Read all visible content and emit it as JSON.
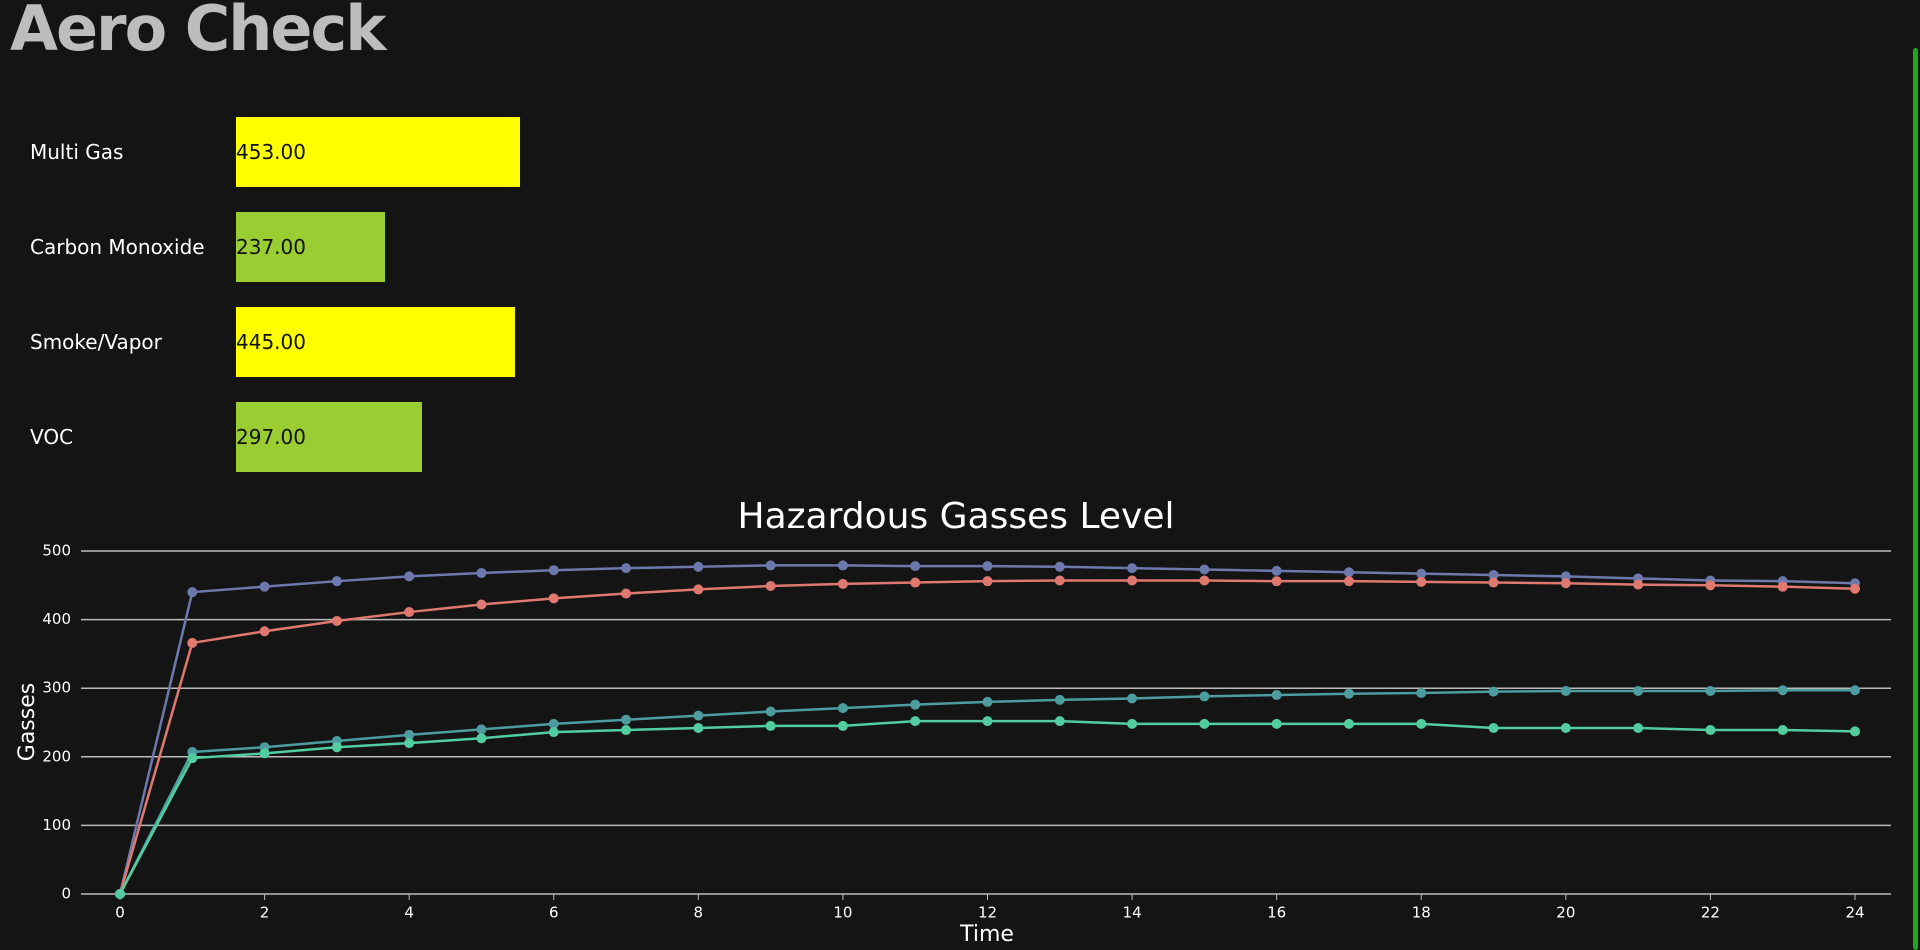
{
  "header": {
    "title": "Aero Check"
  },
  "gauges": [
    {
      "label": "Multi Gas",
      "value": 453,
      "value_label": "453.00",
      "color": "#ffff00"
    },
    {
      "label": "Carbon Monoxide",
      "value": 237,
      "value_label": "237.00",
      "color": "#9acd32"
    },
    {
      "label": "Smoke/Vapor",
      "value": 445,
      "value_label": "445.00",
      "color": "#ffff00"
    },
    {
      "label": "VOC",
      "value": 297,
      "value_label": "297.00",
      "color": "#9acd32"
    }
  ],
  "chart_data": {
    "type": "line",
    "title": "Hazardous Gasses Level",
    "x_label": "Time",
    "y_label": "Gasses",
    "x": [
      0,
      1,
      2,
      3,
      4,
      5,
      6,
      7,
      8,
      9,
      10,
      11,
      12,
      13,
      14,
      15,
      16,
      17,
      18,
      19,
      20,
      21,
      22,
      23,
      24
    ],
    "series": [
      {
        "color": "#6d78ad",
        "values": [
          0,
          440,
          448,
          456,
          463,
          468,
          472,
          475,
          477,
          479,
          479,
          478,
          478,
          477,
          475,
          473,
          471,
          469,
          467,
          465,
          463,
          460,
          457,
          456,
          453
        ]
      },
      {
        "color": "#df7970",
        "values": [
          0,
          366,
          383,
          398,
          411,
          422,
          431,
          438,
          444,
          449,
          452,
          454,
          456,
          457,
          457,
          457,
          456,
          456,
          455,
          454,
          453,
          451,
          450,
          448,
          445
        ]
      },
      {
        "color": "#4c9ca0",
        "values": [
          0,
          207,
          214,
          223,
          232,
          240,
          248,
          254,
          260,
          266,
          271,
          276,
          280,
          283,
          285,
          288,
          290,
          292,
          293,
          295,
          296,
          296,
          296,
          297,
          297
        ]
      },
      {
        "color": "#51cda0",
        "values": [
          0,
          198,
          205,
          214,
          220,
          227,
          236,
          239,
          242,
          245,
          245,
          252,
          252,
          252,
          248,
          248,
          248,
          248,
          248,
          242,
          242,
          242,
          239,
          239,
          237
        ]
      }
    ],
    "xlim": [
      0,
      24
    ],
    "xticks": [
      0,
      2,
      4,
      6,
      8,
      10,
      12,
      14,
      16,
      18,
      20,
      22,
      24
    ],
    "ylim": [
      0,
      500
    ],
    "yticks": [
      0,
      100,
      200,
      300,
      400,
      500
    ],
    "grid": true
  }
}
